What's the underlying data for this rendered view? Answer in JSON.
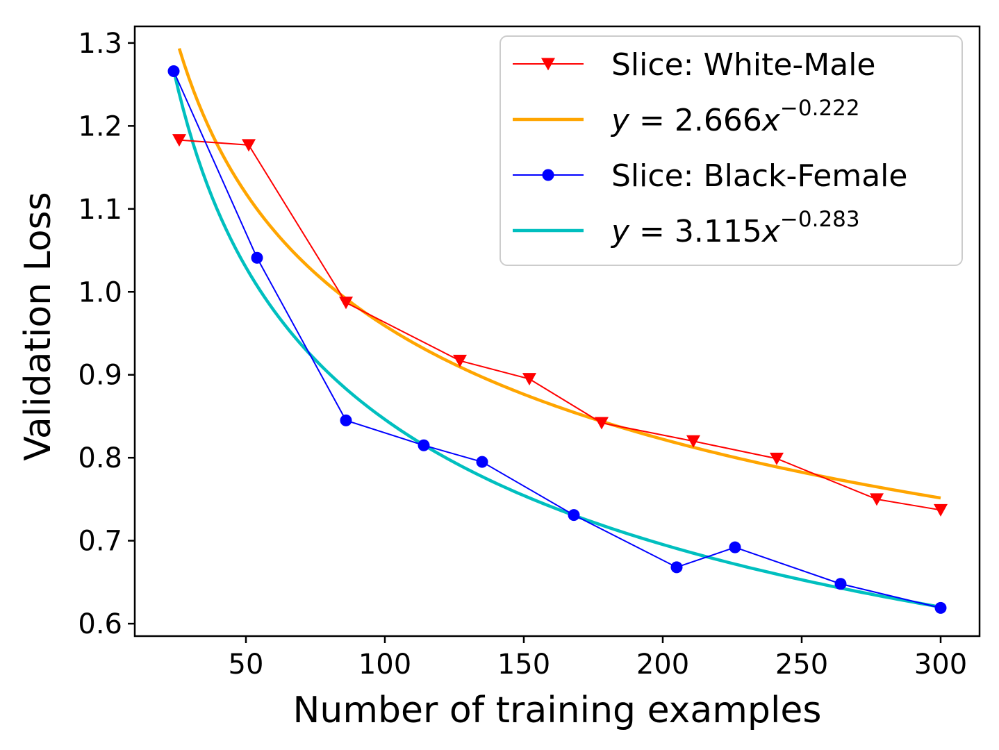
{
  "chart_data": {
    "type": "line",
    "title": "",
    "xlabel": "Number of training examples",
    "ylabel": "Validation Loss",
    "xlim": [
      10,
      314
    ],
    "ylim": [
      0.585,
      1.32
    ],
    "xticks": [
      50,
      100,
      150,
      200,
      250,
      300
    ],
    "xtick_labels": [
      "50",
      "100",
      "150",
      "200",
      "250",
      "300"
    ],
    "yticks": [
      0.6,
      0.7,
      0.8,
      0.9,
      1.0,
      1.1,
      1.2,
      1.3
    ],
    "ytick_labels": [
      "0.6",
      "0.7",
      "0.8",
      "0.9",
      "1.0",
      "1.1",
      "1.2",
      "1.3"
    ],
    "grid": false,
    "legend_position": "top-right",
    "series": [
      {
        "name": "Slice: White-Male",
        "kind": "line-marker",
        "marker": "triangle-down",
        "color": "#ff0000",
        "x": [
          26,
          51,
          86,
          127,
          152,
          178,
          211,
          241,
          277,
          300
        ],
        "y": [
          1.183,
          1.177,
          0.987,
          0.917,
          0.895,
          0.842,
          0.82,
          0.799,
          0.75,
          0.737
        ]
      },
      {
        "name": "y = 2.666x^{−0.222}",
        "kind": "fit",
        "legend_prefix": "y",
        "legend_mid": " = 2.666",
        "legend_var": "x",
        "legend_exp": "−0.222",
        "color": "#ffa500",
        "coef": 2.666,
        "exponent": -0.222,
        "x_range": [
          26,
          300
        ]
      },
      {
        "name": "Slice: Black-Female",
        "kind": "line-marker",
        "marker": "circle",
        "color": "#0000ff",
        "x": [
          24,
          54,
          86,
          114,
          135,
          168,
          205,
          226,
          264,
          300
        ],
        "y": [
          1.266,
          1.041,
          0.845,
          0.815,
          0.795,
          0.731,
          0.668,
          0.692,
          0.648,
          0.619
        ]
      },
      {
        "name": "y = 3.115x^{−0.283}",
        "kind": "fit",
        "legend_prefix": "y",
        "legend_mid": " = 3.115",
        "legend_var": "x",
        "legend_exp": "−0.283",
        "color": "#00bfbf",
        "coef": 3.115,
        "exponent": -0.283,
        "x_range": [
          24,
          300
        ]
      }
    ]
  }
}
